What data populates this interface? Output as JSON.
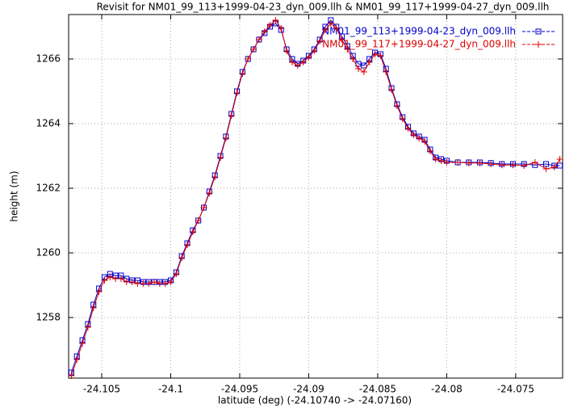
{
  "chart_data": {
    "type": "linespoints",
    "title": "Revisit for NM01_99_113+1999-04-23_dyn_009.llh & NM01_99_117+1999-04-27_dyn_009.llh",
    "x_label": "latitude (deg) (-24.10740 -> -24.07160)",
    "y_label": "height (m)",
    "xlim": [
      -24.1074,
      -24.0716
    ],
    "ylim": [
      1256.125,
      1267.375
    ],
    "xticks": [
      -24.105,
      -24.1,
      -24.095,
      -24.09,
      -24.085,
      -24.08,
      -24.075
    ],
    "yticks": [
      1258,
      1260,
      1262,
      1264,
      1266
    ],
    "grid": true,
    "legend": "top-right",
    "x": [
      -24.1072,
      -24.1068,
      -24.1064,
      -24.106,
      -24.1056,
      -24.1052,
      -24.1048,
      -24.1044,
      -24.104,
      -24.1036,
      -24.1032,
      -24.1028,
      -24.1024,
      -24.102,
      -24.1016,
      -24.1012,
      -24.1008,
      -24.1004,
      -24.1,
      -24.0996,
      -24.0992,
      -24.0988,
      -24.0984,
      -24.098,
      -24.0976,
      -24.0972,
      -24.0968,
      -24.0964,
      -24.096,
      -24.0956,
      -24.0952,
      -24.0948,
      -24.0944,
      -24.094,
      -24.0936,
      -24.0932,
      -24.0928,
      -24.0924,
      -24.092,
      -24.0916,
      -24.0912,
      -24.0908,
      -24.0904,
      -24.09,
      -24.0896,
      -24.0892,
      -24.0888,
      -24.0884,
      -24.088,
      -24.0876,
      -24.0872,
      -24.0868,
      -24.0864,
      -24.086,
      -24.0856,
      -24.0852,
      -24.0848,
      -24.0844,
      -24.084,
      -24.0836,
      -24.0832,
      -24.0828,
      -24.0824,
      -24.082,
      -24.0816,
      -24.0812,
      -24.0808,
      -24.0804,
      -24.08,
      -24.0792,
      -24.0784,
      -24.0776,
      -24.0768,
      -24.076,
      -24.0752,
      -24.0744,
      -24.0736,
      -24.0728,
      -24.0722,
      -24.0718
    ],
    "series": [
      {
        "name": "NM01_99_113+1999-04-23_dyn_009.llh",
        "color": "#0000cc",
        "marker": "square",
        "values": [
          1256.3,
          1256.8,
          1257.3,
          1257.8,
          1258.4,
          1258.9,
          1259.25,
          1259.35,
          1259.3,
          1259.3,
          1259.2,
          1259.15,
          1259.15,
          1259.1,
          1259.1,
          1259.1,
          1259.1,
          1259.1,
          1259.15,
          1259.4,
          1259.9,
          1260.3,
          1260.7,
          1261.0,
          1261.4,
          1261.9,
          1262.4,
          1263.0,
          1263.6,
          1264.3,
          1265.0,
          1265.6,
          1266.0,
          1266.3,
          1266.6,
          1266.8,
          1267.0,
          1267.1,
          1266.9,
          1266.3,
          1266.0,
          1265.85,
          1265.95,
          1266.1,
          1266.3,
          1266.6,
          1267.0,
          1267.2,
          1267.0,
          1266.7,
          1266.4,
          1266.1,
          1265.85,
          1265.8,
          1266.0,
          1266.2,
          1266.15,
          1265.7,
          1265.1,
          1264.6,
          1264.2,
          1263.9,
          1263.7,
          1263.6,
          1263.5,
          1263.2,
          1262.95,
          1262.9,
          1262.85,
          1262.8,
          1262.8,
          1262.8,
          1262.78,
          1262.75,
          1262.75,
          1262.75,
          1262.72,
          1262.75,
          1262.7,
          1262.7
        ]
      },
      {
        "name": "NM01_99_117+1999-04-27_dyn_009.llh",
        "color": "#dd0000",
        "marker": "plus",
        "values": [
          1256.2,
          1256.7,
          1257.2,
          1257.7,
          1258.3,
          1258.8,
          1259.15,
          1259.25,
          1259.2,
          1259.2,
          1259.1,
          1259.1,
          1259.05,
          1259.05,
          1259.05,
          1259.1,
          1259.05,
          1259.05,
          1259.1,
          1259.35,
          1259.85,
          1260.25,
          1260.65,
          1261.0,
          1261.4,
          1261.85,
          1262.35,
          1262.95,
          1263.55,
          1264.25,
          1264.95,
          1265.55,
          1266.0,
          1266.3,
          1266.6,
          1266.85,
          1267.05,
          1267.2,
          1266.95,
          1266.25,
          1265.9,
          1265.8,
          1265.9,
          1266.05,
          1266.25,
          1266.55,
          1266.9,
          1267.1,
          1266.95,
          1266.6,
          1266.3,
          1266.0,
          1265.7,
          1265.6,
          1265.9,
          1266.15,
          1266.1,
          1265.6,
          1265.05,
          1264.55,
          1264.15,
          1263.85,
          1263.65,
          1263.55,
          1263.45,
          1263.15,
          1262.9,
          1262.85,
          1262.8,
          1262.8,
          1262.78,
          1262.78,
          1262.75,
          1262.72,
          1262.72,
          1262.7,
          1262.8,
          1262.6,
          1262.65,
          1262.9
        ]
      }
    ]
  }
}
